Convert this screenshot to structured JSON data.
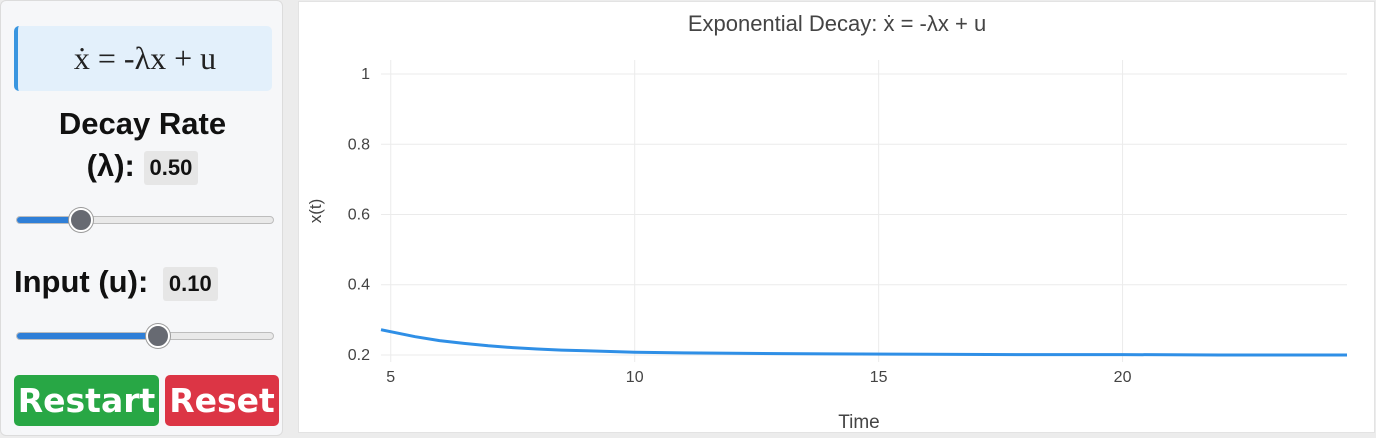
{
  "controls": {
    "equation": "ẋ = -λx + u",
    "decay_label_line1": "Decay Rate",
    "decay_label_line2": "(λ):",
    "decay_value": "0.50",
    "decay_slider_fraction": 0.25,
    "input_label": "Input (u):",
    "input_value": "0.10",
    "input_slider_fraction": 0.55,
    "restart_label": "Restart",
    "reset_label": "Reset",
    "restart_color": "#28a745",
    "reset_color": "#dc3545",
    "accent_color": "#3a96e0"
  },
  "chart_data": {
    "type": "line",
    "title": "Exponential Decay: ẋ = -λx + u",
    "xlabel": "Time",
    "ylabel": "x(t)",
    "xlim": [
      4.8,
      24.6
    ],
    "ylim": [
      0.18,
      1.04
    ],
    "xticks": [
      5,
      10,
      15,
      20
    ],
    "yticks": [
      0.2,
      0.4,
      0.6,
      0.8,
      1
    ],
    "ytick_labels": [
      "0.2",
      "0.4",
      "0.6",
      "0.8",
      "1"
    ],
    "grid": true,
    "series": [
      {
        "color": "#2f8fe6",
        "x": [
          4.8,
          5.5,
          6.0,
          6.5,
          7.0,
          7.5,
          8.0,
          8.5,
          9.0,
          9.5,
          10.0,
          11.0,
          12.0,
          13.0,
          14.0,
          16.0,
          18.0,
          20.0,
          22.0,
          24.6
        ],
        "y": [
          0.272,
          0.252,
          0.241,
          0.233,
          0.226,
          0.221,
          0.217,
          0.214,
          0.212,
          0.21,
          0.208,
          0.206,
          0.205,
          0.204,
          0.203,
          0.202,
          0.201,
          0.201,
          0.2,
          0.2
        ]
      }
    ]
  }
}
